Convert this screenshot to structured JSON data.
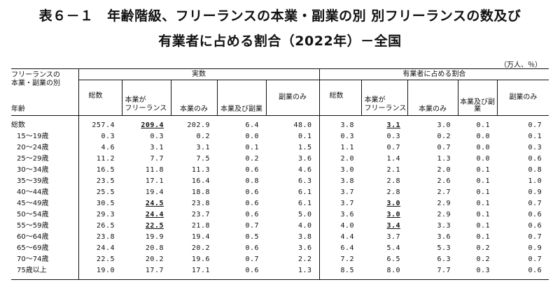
{
  "title_line1": "表６－１　年齢階級、フリーランスの本業・副業の別 別フリーランスの数及び",
  "title_line2": "有業者に占める割合（2022年）－全国",
  "unit": "（万人、％）",
  "headers": {
    "corner_top": "フリーランスの\n本業・副業の別",
    "corner_bottom": "年齢",
    "group_actual": "実数",
    "group_ratio": "有業者に占める割合",
    "total": "総数",
    "honbou": "本業が\nフリーランス",
    "honbou_only": "本業のみ",
    "honbou_and_side": "本業及び副業",
    "side_only": "副業のみ"
  },
  "rows": [
    {
      "label": "総数",
      "v": [
        "257.4",
        "209.4",
        "202.9",
        "6.4",
        "48.0",
        "3.8",
        "3.1",
        "3.0",
        "0.1",
        "0.7"
      ],
      "u": [
        1,
        6
      ]
    },
    {
      "label": "15～19歳",
      "v": [
        "0.3",
        "0.3",
        "0.2",
        "0.0",
        "0.1",
        "0.3",
        "0.3",
        "0.2",
        "0.0",
        "0.1"
      ],
      "u": []
    },
    {
      "label": "20～24歳",
      "v": [
        "4.6",
        "3.1",
        "3.1",
        "0.1",
        "1.5",
        "1.1",
        "0.7",
        "0.7",
        "0.0",
        "0.3"
      ],
      "u": []
    },
    {
      "label": "25～29歳",
      "v": [
        "11.2",
        "7.7",
        "7.5",
        "0.2",
        "3.6",
        "2.0",
        "1.4",
        "1.3",
        "0.0",
        "0.6"
      ],
      "u": []
    },
    {
      "label": "30～34歳",
      "v": [
        "16.5",
        "11.8",
        "11.3",
        "0.6",
        "4.6",
        "3.0",
        "2.1",
        "2.0",
        "0.1",
        "0.8"
      ],
      "u": []
    },
    {
      "label": "35～39歳",
      "v": [
        "23.5",
        "17.1",
        "16.4",
        "0.8",
        "6.3",
        "3.8",
        "2.8",
        "2.6",
        "0.1",
        "1.0"
      ],
      "u": []
    },
    {
      "label": "40～44歳",
      "v": [
        "25.5",
        "19.4",
        "18.8",
        "0.6",
        "6.1",
        "3.7",
        "2.8",
        "2.7",
        "0.1",
        "0.9"
      ],
      "u": []
    },
    {
      "label": "45～49歳",
      "v": [
        "30.5",
        "24.5",
        "23.8",
        "0.6",
        "6.1",
        "3.7",
        "3.0",
        "2.9",
        "0.1",
        "0.7"
      ],
      "u": [
        1,
        6
      ]
    },
    {
      "label": "50～54歳",
      "v": [
        "29.3",
        "24.4",
        "23.7",
        "0.6",
        "5.0",
        "3.6",
        "3.0",
        "2.9",
        "0.1",
        "0.6"
      ],
      "u": [
        1,
        6
      ]
    },
    {
      "label": "55～59歳",
      "v": [
        "26.5",
        "22.5",
        "21.8",
        "0.7",
        "4.0",
        "4.0",
        "3.4",
        "3.3",
        "0.1",
        "0.6"
      ],
      "u": [
        1,
        6
      ]
    },
    {
      "label": "60～64歳",
      "v": [
        "23.8",
        "19.9",
        "19.4",
        "0.5",
        "3.8",
        "4.4",
        "3.7",
        "3.6",
        "0.1",
        "0.7"
      ],
      "u": []
    },
    {
      "label": "65～69歳",
      "v": [
        "24.4",
        "20.8",
        "20.2",
        "0.6",
        "3.6",
        "6.4",
        "5.4",
        "5.3",
        "0.2",
        "0.9"
      ],
      "u": []
    },
    {
      "label": "70～74歳",
      "v": [
        "22.5",
        "20.2",
        "19.6",
        "0.7",
        "2.2",
        "7.2",
        "6.5",
        "6.3",
        "0.2",
        "0.7"
      ],
      "u": []
    },
    {
      "label": "75歳以上",
      "v": [
        "19.0",
        "17.7",
        "17.1",
        "0.6",
        "1.3",
        "8.5",
        "8.0",
        "7.7",
        "0.3",
        "0.6"
      ],
      "u": []
    }
  ]
}
